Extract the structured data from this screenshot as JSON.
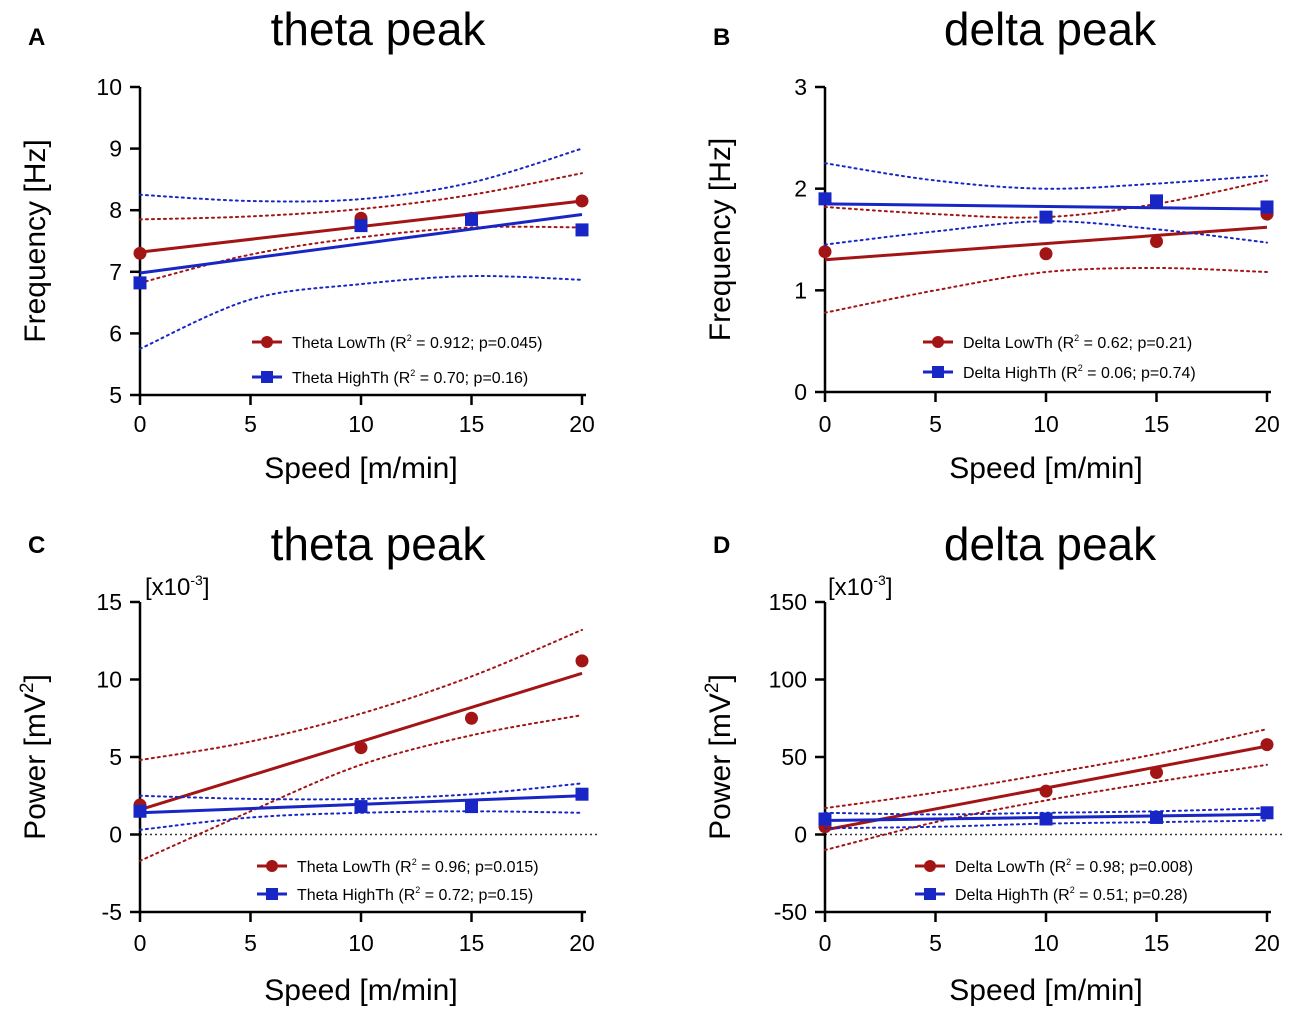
{
  "colors": {
    "red": "#a31414",
    "blue": "#1726c4",
    "axis": "#000000",
    "zero_line": "#333333"
  },
  "markers": {
    "red": "circle",
    "blue": "square"
  },
  "chart_data": [
    {
      "id": "A",
      "letter": "A",
      "type": "scatter",
      "title": "theta peak",
      "xlabel": "Speed [m/min]",
      "ylabel": "Frequency [Hz]",
      "multiplier": null,
      "xlim": [
        0,
        20
      ],
      "ylim": [
        5,
        10
      ],
      "xticks": [
        0,
        5,
        10,
        15,
        20
      ],
      "yticks": [
        5,
        6,
        7,
        8,
        9,
        10
      ],
      "zero_line": false,
      "series": [
        {
          "name": "Theta LowTh",
          "color": "red",
          "marker": "circle",
          "stats_pre": "(R",
          "stats_sup": "2",
          "stats_post": " = 0.912; p=0.045)",
          "x": [
            0,
            10,
            15,
            20
          ],
          "y": [
            7.3,
            7.87,
            7.87,
            8.15
          ],
          "fit": [
            [
              0,
              7.32
            ],
            [
              20,
              8.15
            ]
          ],
          "ci_upper": [
            [
              0,
              7.85
            ],
            [
              5,
              7.9
            ],
            [
              10,
              8.02
            ],
            [
              15,
              8.25
            ],
            [
              20,
              8.6
            ]
          ],
          "ci_lower": [
            [
              0,
              6.82
            ],
            [
              5,
              7.28
            ],
            [
              10,
              7.56
            ],
            [
              15,
              7.72
            ],
            [
              20,
              7.72
            ]
          ]
        },
        {
          "name": "Theta HighTh",
          "color": "blue",
          "marker": "square",
          "stats_pre": "(R",
          "stats_sup": "2",
          "stats_post": " = 0.70; p=0.16)",
          "x": [
            0,
            10,
            15,
            20
          ],
          "y": [
            6.82,
            7.75,
            7.85,
            7.68
          ],
          "fit": [
            [
              0,
              6.98
            ],
            [
              20,
              7.93
            ]
          ],
          "ci_upper": [
            [
              0,
              8.25
            ],
            [
              5,
              8.15
            ],
            [
              10,
              8.18
            ],
            [
              15,
              8.45
            ],
            [
              20,
              9.0
            ]
          ],
          "ci_lower": [
            [
              0,
              5.75
            ],
            [
              5,
              6.55
            ],
            [
              10,
              6.8
            ],
            [
              15,
              6.93
            ],
            [
              20,
              6.87
            ]
          ]
        }
      ]
    },
    {
      "id": "B",
      "letter": "B",
      "type": "scatter",
      "title": "delta peak",
      "xlabel": "Speed [m/min]",
      "ylabel": "Frequency [Hz]",
      "multiplier": null,
      "xlim": [
        0,
        20
      ],
      "ylim": [
        0,
        3
      ],
      "xticks": [
        0,
        5,
        10,
        15,
        20
      ],
      "yticks": [
        0,
        1,
        2,
        3
      ],
      "zero_line": false,
      "series": [
        {
          "name": "Delta LowTh",
          "color": "red",
          "marker": "circle",
          "stats_pre": "(R",
          "stats_sup": "2",
          "stats_post": " = 0.62; p=0.21)",
          "x": [
            0,
            10,
            15,
            20
          ],
          "y": [
            1.38,
            1.36,
            1.48,
            1.75
          ],
          "fit": [
            [
              0,
              1.3
            ],
            [
              20,
              1.62
            ]
          ],
          "ci_upper": [
            [
              0,
              1.82
            ],
            [
              5,
              1.75
            ],
            [
              10,
              1.72
            ],
            [
              15,
              1.85
            ],
            [
              20,
              2.08
            ]
          ],
          "ci_lower": [
            [
              0,
              0.78
            ],
            [
              5,
              1.0
            ],
            [
              10,
              1.18
            ],
            [
              15,
              1.22
            ],
            [
              20,
              1.18
            ]
          ]
        },
        {
          "name": "Delta HighTh",
          "color": "blue",
          "marker": "square",
          "stats_pre": "(R",
          "stats_sup": "2",
          "stats_post": " = 0.06; p=0.74)",
          "x": [
            0,
            10,
            15,
            20
          ],
          "y": [
            1.9,
            1.72,
            1.88,
            1.82
          ],
          "fit": [
            [
              0,
              1.85
            ],
            [
              20,
              1.8
            ]
          ],
          "ci_upper": [
            [
              0,
              2.25
            ],
            [
              5,
              2.08
            ],
            [
              10,
              2.0
            ],
            [
              15,
              2.05
            ],
            [
              20,
              2.13
            ]
          ],
          "ci_lower": [
            [
              0,
              1.45
            ],
            [
              5,
              1.58
            ],
            [
              10,
              1.68
            ],
            [
              15,
              1.6
            ],
            [
              20,
              1.47
            ]
          ]
        }
      ]
    },
    {
      "id": "C",
      "letter": "C",
      "type": "scatter",
      "title": "theta peak",
      "xlabel": "Speed [m/min]",
      "ylabel_pre": "Power  [mV",
      "ylabel_sup": "2",
      "ylabel_post": "]",
      "multiplier": {
        "pre": "[x10",
        "sup": "-3",
        "post": "]"
      },
      "xlim": [
        0,
        20
      ],
      "ylim": [
        -5,
        15
      ],
      "xticks": [
        0,
        5,
        10,
        15,
        20
      ],
      "yticks": [
        -5,
        0,
        5,
        10,
        15
      ],
      "zero_line": true,
      "series": [
        {
          "name": "Theta LowTh",
          "color": "red",
          "marker": "circle",
          "stats_pre": "(R",
          "stats_sup": "2",
          "stats_post": " = 0.96; p=0.015)",
          "x": [
            0,
            10,
            15,
            20
          ],
          "y": [
            1.9,
            5.6,
            7.5,
            11.2
          ],
          "fit": [
            [
              0,
              1.6
            ],
            [
              20,
              10.4
            ]
          ],
          "ci_upper": [
            [
              0,
              4.8
            ],
            [
              5,
              6.0
            ],
            [
              10,
              7.8
            ],
            [
              15,
              10.2
            ],
            [
              20,
              13.2
            ]
          ],
          "ci_lower": [
            [
              0,
              -1.7
            ],
            [
              5,
              1.5
            ],
            [
              10,
              4.5
            ],
            [
              15,
              6.4
            ],
            [
              20,
              7.7
            ]
          ]
        },
        {
          "name": "Theta HighTh",
          "color": "blue",
          "marker": "square",
          "stats_pre": "(R",
          "stats_sup": "2",
          "stats_post": " = 0.72; p=0.15)",
          "x": [
            0,
            10,
            15,
            20
          ],
          "y": [
            1.5,
            1.8,
            1.8,
            2.6
          ],
          "fit": [
            [
              0,
              1.4
            ],
            [
              20,
              2.5
            ]
          ],
          "ci_upper": [
            [
              0,
              2.5
            ],
            [
              5,
              2.3
            ],
            [
              10,
              2.3
            ],
            [
              15,
              2.6
            ],
            [
              20,
              3.3
            ]
          ],
          "ci_lower": [
            [
              0,
              0.3
            ],
            [
              5,
              1.1
            ],
            [
              10,
              1.4
            ],
            [
              15,
              1.5
            ],
            [
              20,
              1.4
            ]
          ]
        }
      ]
    },
    {
      "id": "D",
      "letter": "D",
      "type": "scatter",
      "title": "delta peak",
      "xlabel": "Speed [m/min]",
      "ylabel_pre": "Power  [mV",
      "ylabel_sup": "2",
      "ylabel_post": "]",
      "multiplier": {
        "pre": "[x10",
        "sup": "-3",
        "post": "]"
      },
      "xlim": [
        0,
        20
      ],
      "ylim": [
        -50,
        150
      ],
      "xticks": [
        0,
        5,
        10,
        15,
        20
      ],
      "yticks": [
        -50,
        0,
        50,
        100,
        150
      ],
      "zero_line": true,
      "series": [
        {
          "name": "Delta LowTh",
          "color": "red",
          "marker": "circle",
          "stats_pre": "(R",
          "stats_sup": "2",
          "stats_post": " = 0.98; p=0.008)",
          "x": [
            0,
            10,
            15,
            20
          ],
          "y": [
            5,
            28,
            40,
            58
          ],
          "fit": [
            [
              0,
              3
            ],
            [
              20,
              57
            ]
          ],
          "ci_upper": [
            [
              0,
              17
            ],
            [
              5,
              27
            ],
            [
              10,
              39
            ],
            [
              15,
              52
            ],
            [
              20,
              68
            ]
          ],
          "ci_lower": [
            [
              0,
              -10
            ],
            [
              5,
              8
            ],
            [
              10,
              22
            ],
            [
              15,
              34
            ],
            [
              20,
              45
            ]
          ]
        },
        {
          "name": "Delta HighTh",
          "color": "blue",
          "marker": "square",
          "stats_pre": "(R",
          "stats_sup": "2",
          "stats_post": " = 0.51; p=0.28)",
          "x": [
            0,
            10,
            15,
            20
          ],
          "y": [
            10,
            10,
            11,
            14
          ],
          "fit": [
            [
              0,
              9
            ],
            [
              20,
              13
            ]
          ],
          "ci_upper": [
            [
              0,
              14
            ],
            [
              5,
              13
            ],
            [
              10,
              14
            ],
            [
              15,
              15
            ],
            [
              20,
              17
            ]
          ],
          "ci_lower": [
            [
              0,
              4
            ],
            [
              5,
              5
            ],
            [
              10,
              7
            ],
            [
              15,
              8
            ],
            [
              20,
              9
            ]
          ]
        }
      ]
    }
  ]
}
